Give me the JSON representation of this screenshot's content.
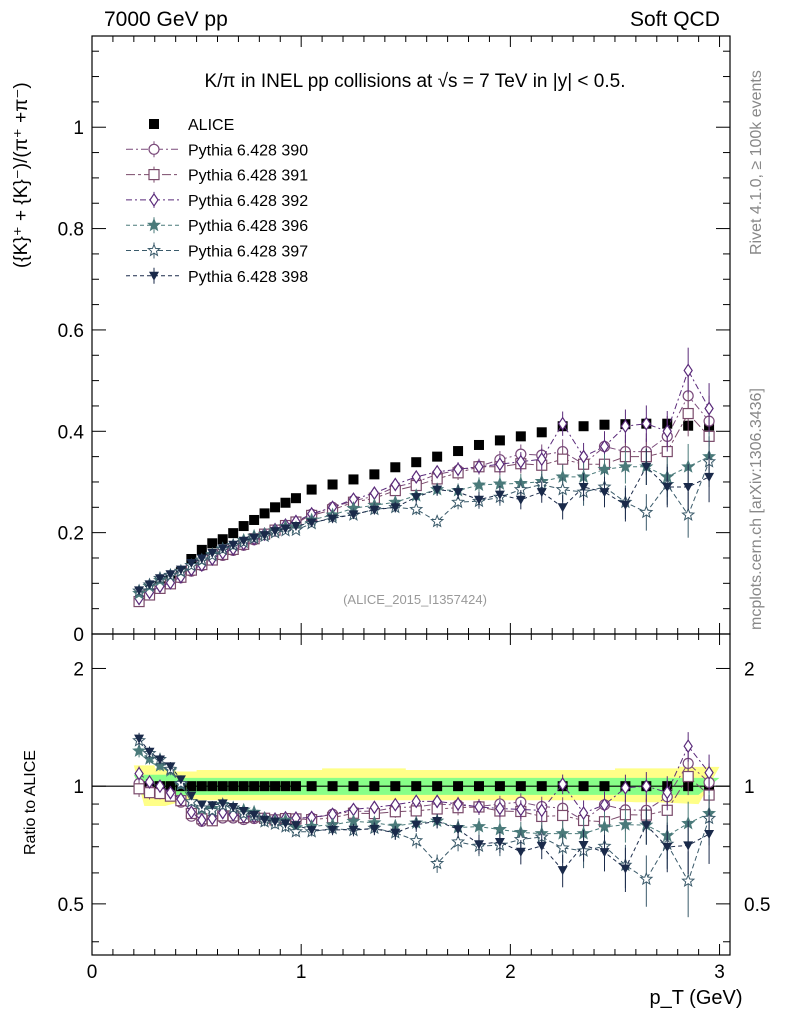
{
  "header": {
    "left": "7000 GeV pp",
    "right": "Soft QCD"
  },
  "side_labels": {
    "rivet": "Rivet 4.1.0, ≥ 100k events",
    "mcplots": "mcplots.cern.ch [arXiv:1306.3436]"
  },
  "watermark": "(ALICE_2015_I1357424)",
  "colors": {
    "alice": "#000000",
    "p390": "#7a4a7a",
    "p391": "#7a4a6a",
    "p392": "#5a2a7a",
    "p396": "#4a7a7a",
    "p397": "#3a5a6a",
    "p398": "#1a2a4a",
    "band_outer": "#ffff88",
    "band_inner": "#88ff88"
  },
  "chart_data": {
    "type": "scatter",
    "title": "K/π in INEL pp collisions at √s =  7 TeV in |y| < 0.5.",
    "ylabel": "({K}⁺ + {K}⁻)/(π⁺ +π⁻)",
    "xlabel": "p_T (GeV)",
    "ratio_ylabel": "Ratio to ALICE",
    "xlim": [
      0,
      3.05
    ],
    "ylim": [
      0,
      1.18
    ],
    "ratio_ylim": [
      0.37,
      2.45
    ],
    "x_ticks": [
      0,
      1,
      2,
      3
    ],
    "y_ticks": [
      0,
      0.2,
      0.4,
      0.6,
      0.8,
      1
    ],
    "ratio_ticks": [
      0.5,
      1,
      2
    ],
    "legend": {
      "placement": "top-left",
      "entries": [
        "ALICE",
        "Pythia 6.428 390",
        "Pythia 6.428 391",
        "Pythia 6.428 392",
        "Pythia 6.428 396",
        "Pythia 6.428 397",
        "Pythia 6.428 398"
      ]
    },
    "x": [
      0.225,
      0.275,
      0.325,
      0.375,
      0.425,
      0.475,
      0.525,
      0.575,
      0.625,
      0.675,
      0.725,
      0.775,
      0.825,
      0.875,
      0.925,
      0.975,
      1.05,
      1.15,
      1.25,
      1.35,
      1.45,
      1.55,
      1.65,
      1.75,
      1.85,
      1.95,
      2.05,
      2.15,
      2.25,
      2.35,
      2.45,
      2.55,
      2.65,
      2.75,
      2.85,
      2.95
    ],
    "band": {
      "inner_lo": [
        0.94,
        0.94,
        0.94,
        0.94,
        0.95,
        0.95,
        0.95,
        0.95,
        0.95,
        0.95,
        0.95,
        0.95,
        0.95,
        0.95,
        0.95,
        0.95,
        0.95,
        0.95,
        0.95,
        0.95,
        0.95,
        0.95,
        0.95,
        0.95,
        0.95,
        0.95,
        0.95,
        0.95,
        0.95,
        0.95,
        0.95,
        0.95,
        0.95,
        0.95,
        0.95,
        0.95
      ],
      "inner_hi": [
        1.07,
        1.07,
        1.07,
        1.07,
        1.05,
        1.05,
        1.05,
        1.05,
        1.05,
        1.05,
        1.05,
        1.05,
        1.05,
        1.05,
        1.05,
        1.05,
        1.05,
        1.05,
        1.05,
        1.05,
        1.05,
        1.05,
        1.05,
        1.05,
        1.05,
        1.05,
        1.05,
        1.05,
        1.05,
        1.05,
        1.05,
        1.05,
        1.05,
        1.05,
        1.05,
        1.05
      ],
      "outer_lo": [
        0.89,
        0.89,
        0.89,
        0.89,
        0.92,
        0.92,
        0.92,
        0.92,
        0.92,
        0.92,
        0.92,
        0.92,
        0.92,
        0.92,
        0.92,
        0.92,
        0.92,
        0.92,
        0.92,
        0.92,
        0.92,
        0.92,
        0.92,
        0.92,
        0.92,
        0.92,
        0.92,
        0.92,
        0.92,
        0.92,
        0.92,
        0.91,
        0.91,
        0.91,
        0.9,
        0.9
      ],
      "outer_hi": [
        1.13,
        1.13,
        1.11,
        1.11,
        1.09,
        1.09,
        1.1,
        1.1,
        1.1,
        1.1,
        1.1,
        1.1,
        1.1,
        1.1,
        1.1,
        1.1,
        1.1,
        1.11,
        1.11,
        1.11,
        1.11,
        1.1,
        1.1,
        1.1,
        1.1,
        1.1,
        1.1,
        1.1,
        1.1,
        1.1,
        1.1,
        1.11,
        1.11,
        1.11,
        1.12,
        1.12
      ]
    },
    "series": [
      {
        "name": "ALICE",
        "marker": "square",
        "dash": "none",
        "values": [
          0.065,
          0.08,
          0.094,
          0.105,
          0.122,
          0.148,
          0.166,
          0.179,
          0.187,
          0.199,
          0.213,
          0.225,
          0.238,
          0.25,
          0.259,
          0.268,
          0.285,
          0.295,
          0.305,
          0.315,
          0.329,
          0.339,
          0.35,
          0.361,
          0.373,
          0.382,
          0.39,
          0.398,
          0.41,
          0.41,
          0.413,
          0.414,
          0.415,
          0.415,
          0.411,
          0.411
        ],
        "errors": [
          0.002,
          0.002,
          0.002,
          0.002,
          0.002,
          0.002,
          0.002,
          0.002,
          0.002,
          0.002,
          0.002,
          0.002,
          0.002,
          0.002,
          0.002,
          0.002,
          0.002,
          0.003,
          0.003,
          0.003,
          0.003,
          0.003,
          0.004,
          0.004,
          0.004,
          0.005,
          0.005,
          0.006,
          0.006,
          0.007,
          0.007,
          0.008,
          0.008,
          0.009,
          0.009,
          0.01
        ]
      },
      {
        "name": "Pythia 6.428 390",
        "marker": "circle-open",
        "dash": "7,3,2,3",
        "values": [
          0.066,
          0.078,
          0.091,
          0.1,
          0.111,
          0.124,
          0.135,
          0.147,
          0.155,
          0.165,
          0.175,
          0.186,
          0.196,
          0.203,
          0.21,
          0.218,
          0.236,
          0.25,
          0.263,
          0.272,
          0.29,
          0.3,
          0.315,
          0.323,
          0.331,
          0.344,
          0.355,
          0.353,
          0.36,
          0.335,
          0.37,
          0.36,
          0.36,
          0.39,
          0.47,
          0.42
        ],
        "errors": [
          0.003,
          0.003,
          0.003,
          0.003,
          0.003,
          0.003,
          0.003,
          0.004,
          0.004,
          0.004,
          0.004,
          0.005,
          0.005,
          0.005,
          0.006,
          0.006,
          0.006,
          0.007,
          0.008,
          0.009,
          0.01,
          0.011,
          0.012,
          0.014,
          0.015,
          0.017,
          0.019,
          0.021,
          0.024,
          0.027,
          0.03,
          0.033,
          0.036,
          0.04,
          0.045,
          0.05
        ]
      },
      {
        "name": "Pythia 6.428 391",
        "marker": "square-open",
        "dash": "9,3,3,3",
        "values": [
          0.064,
          0.077,
          0.09,
          0.099,
          0.112,
          0.126,
          0.137,
          0.146,
          0.157,
          0.167,
          0.177,
          0.188,
          0.197,
          0.205,
          0.214,
          0.221,
          0.234,
          0.245,
          0.26,
          0.268,
          0.283,
          0.293,
          0.306,
          0.318,
          0.33,
          0.33,
          0.336,
          0.333,
          0.345,
          0.335,
          0.335,
          0.35,
          0.35,
          0.36,
          0.435,
          0.39
        ],
        "errors": [
          0.003,
          0.003,
          0.003,
          0.003,
          0.003,
          0.003,
          0.003,
          0.004,
          0.004,
          0.004,
          0.004,
          0.005,
          0.005,
          0.005,
          0.006,
          0.006,
          0.006,
          0.007,
          0.008,
          0.009,
          0.01,
          0.011,
          0.012,
          0.014,
          0.015,
          0.017,
          0.019,
          0.021,
          0.024,
          0.027,
          0.03,
          0.033,
          0.036,
          0.04,
          0.045,
          0.05
        ]
      },
      {
        "name": "Pythia 6.428 392",
        "marker": "diamond-open",
        "dash": "6,3,2,3",
        "values": [
          0.07,
          0.082,
          0.094,
          0.101,
          0.113,
          0.127,
          0.136,
          0.148,
          0.16,
          0.168,
          0.178,
          0.188,
          0.197,
          0.206,
          0.215,
          0.222,
          0.237,
          0.25,
          0.266,
          0.278,
          0.295,
          0.31,
          0.32,
          0.325,
          0.33,
          0.335,
          0.34,
          0.345,
          0.415,
          0.35,
          0.37,
          0.41,
          0.415,
          0.4,
          0.52,
          0.445
        ],
        "errors": [
          0.003,
          0.003,
          0.003,
          0.003,
          0.003,
          0.003,
          0.003,
          0.004,
          0.004,
          0.004,
          0.004,
          0.005,
          0.005,
          0.005,
          0.006,
          0.006,
          0.006,
          0.007,
          0.008,
          0.009,
          0.01,
          0.011,
          0.012,
          0.014,
          0.015,
          0.017,
          0.019,
          0.021,
          0.024,
          0.027,
          0.03,
          0.033,
          0.036,
          0.04,
          0.045,
          0.05
        ]
      },
      {
        "name": "Pythia 6.428 396",
        "marker": "star-filled",
        "dash": "4,3",
        "values": [
          0.08,
          0.094,
          0.106,
          0.115,
          0.123,
          0.135,
          0.145,
          0.157,
          0.168,
          0.175,
          0.185,
          0.193,
          0.197,
          0.204,
          0.212,
          0.21,
          0.225,
          0.235,
          0.248,
          0.254,
          0.26,
          0.273,
          0.285,
          0.283,
          0.294,
          0.296,
          0.297,
          0.301,
          0.31,
          0.31,
          0.325,
          0.33,
          0.33,
          0.31,
          0.33,
          0.35
        ],
        "errors": [
          0.003,
          0.003,
          0.003,
          0.003,
          0.003,
          0.003,
          0.003,
          0.004,
          0.004,
          0.004,
          0.004,
          0.005,
          0.005,
          0.005,
          0.006,
          0.006,
          0.006,
          0.007,
          0.008,
          0.009,
          0.01,
          0.011,
          0.012,
          0.014,
          0.015,
          0.017,
          0.019,
          0.021,
          0.024,
          0.027,
          0.03,
          0.033,
          0.036,
          0.04,
          0.045,
          0.05
        ]
      },
      {
        "name": "Pythia 6.428 397",
        "marker": "star-open",
        "dash": "5,3",
        "values": [
          0.085,
          0.097,
          0.11,
          0.116,
          0.124,
          0.135,
          0.146,
          0.155,
          0.167,
          0.175,
          0.181,
          0.189,
          0.193,
          0.2,
          0.204,
          0.205,
          0.218,
          0.23,
          0.235,
          0.246,
          0.25,
          0.246,
          0.222,
          0.26,
          0.262,
          0.27,
          0.285,
          0.295,
          0.285,
          0.28,
          0.29,
          0.26,
          0.24,
          0.295,
          0.235,
          0.34
        ],
        "errors": [
          0.003,
          0.003,
          0.003,
          0.003,
          0.003,
          0.003,
          0.003,
          0.004,
          0.004,
          0.004,
          0.004,
          0.005,
          0.005,
          0.005,
          0.006,
          0.006,
          0.006,
          0.007,
          0.008,
          0.009,
          0.01,
          0.011,
          0.012,
          0.014,
          0.015,
          0.017,
          0.019,
          0.021,
          0.024,
          0.027,
          0.03,
          0.033,
          0.036,
          0.04,
          0.045,
          0.05
        ]
      },
      {
        "name": "Pythia 6.428 398",
        "marker": "triangle-down",
        "dash": "4,3",
        "values": [
          0.086,
          0.098,
          0.11,
          0.118,
          0.127,
          0.14,
          0.149,
          0.16,
          0.169,
          0.176,
          0.184,
          0.19,
          0.195,
          0.203,
          0.208,
          0.213,
          0.22,
          0.228,
          0.236,
          0.245,
          0.25,
          0.27,
          0.285,
          0.28,
          0.265,
          0.275,
          0.265,
          0.28,
          0.25,
          0.29,
          0.28,
          0.255,
          0.33,
          0.29,
          0.29,
          0.31
        ],
        "errors": [
          0.003,
          0.003,
          0.003,
          0.003,
          0.003,
          0.003,
          0.003,
          0.004,
          0.004,
          0.004,
          0.004,
          0.005,
          0.005,
          0.005,
          0.006,
          0.006,
          0.006,
          0.007,
          0.008,
          0.009,
          0.01,
          0.011,
          0.012,
          0.014,
          0.015,
          0.017,
          0.019,
          0.021,
          0.024,
          0.027,
          0.03,
          0.033,
          0.036,
          0.04,
          0.045,
          0.05
        ]
      }
    ]
  }
}
